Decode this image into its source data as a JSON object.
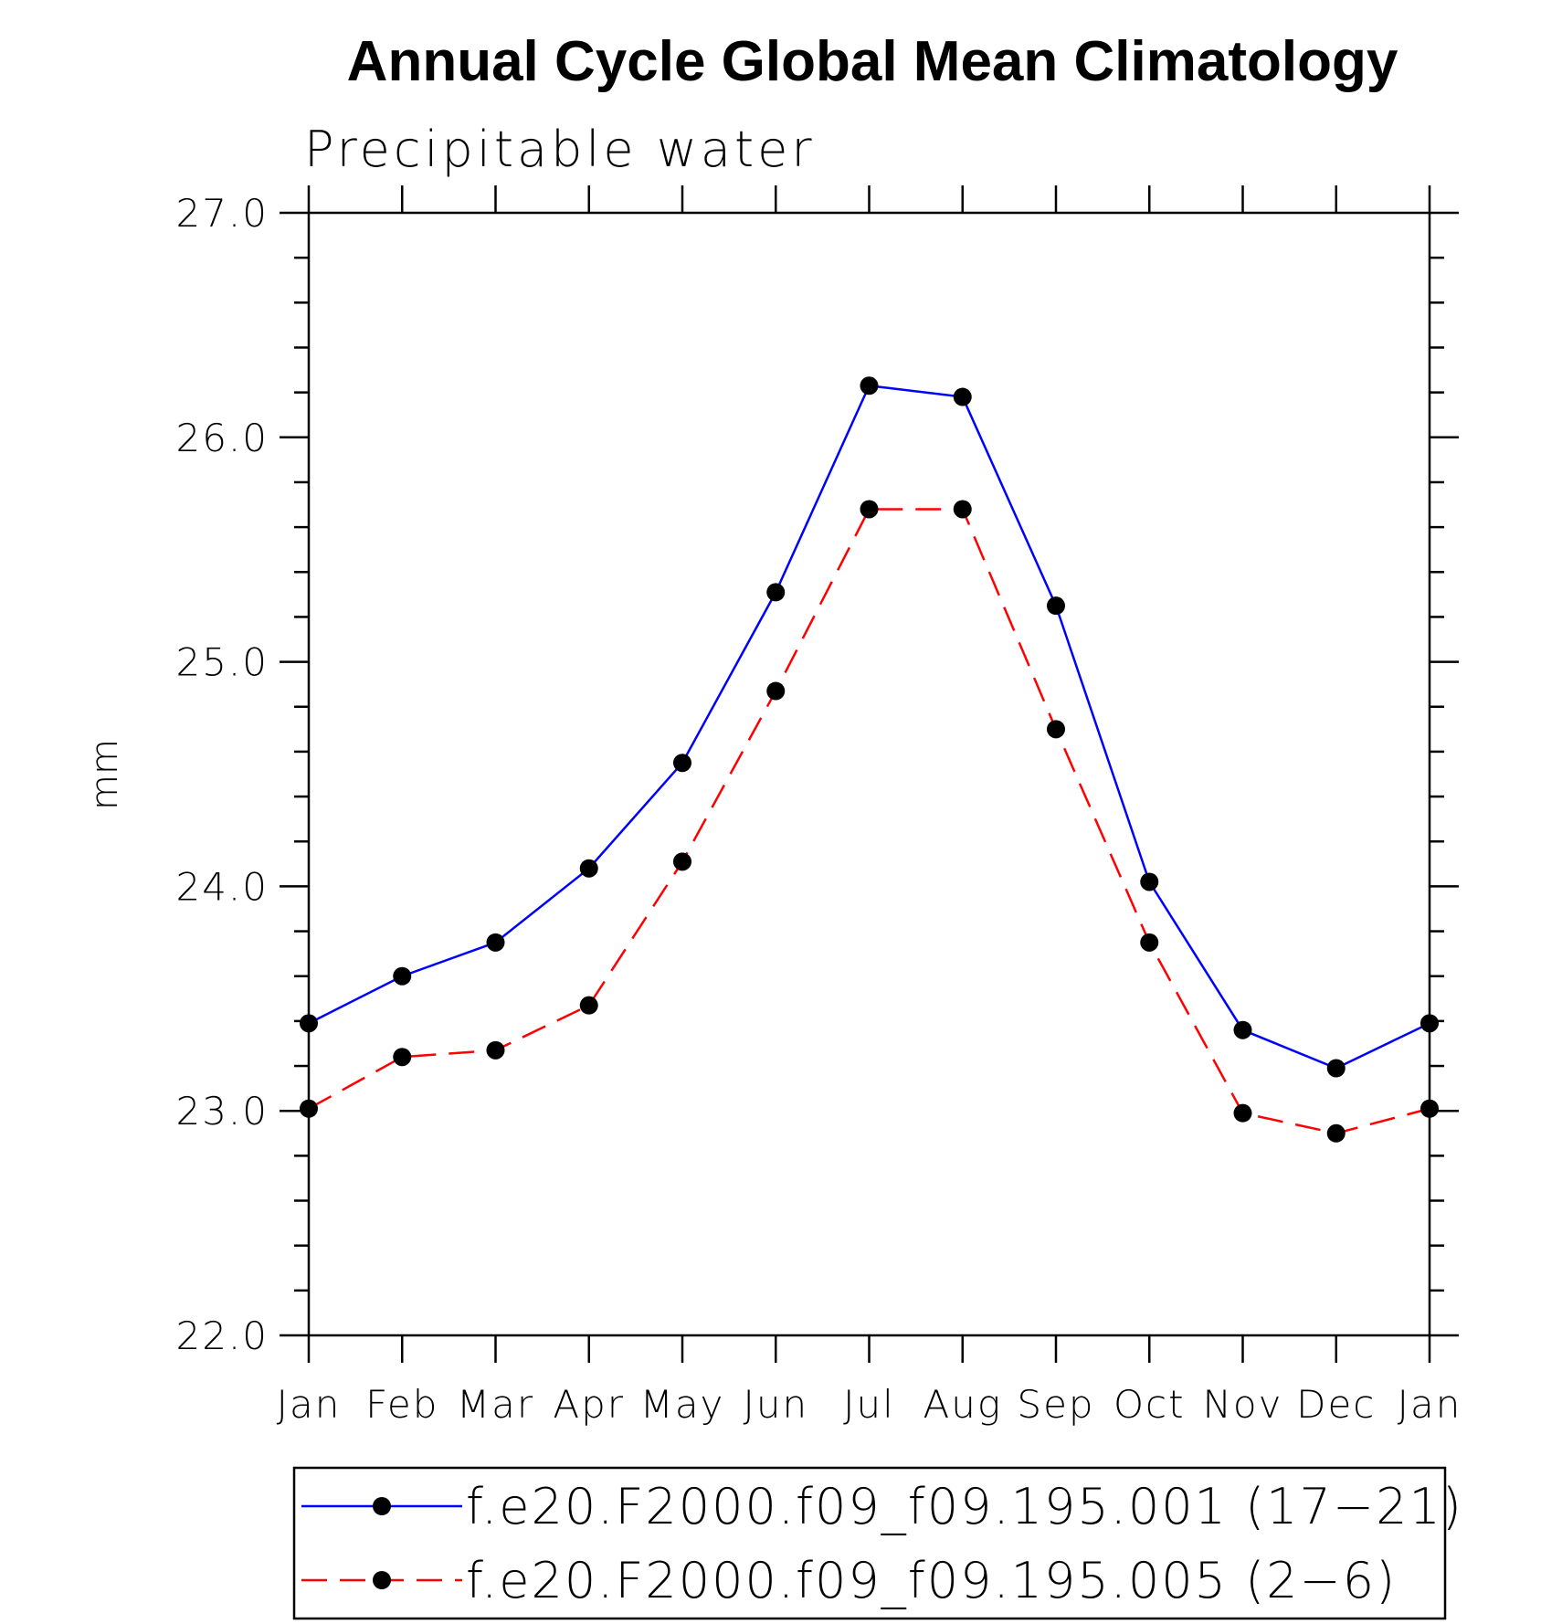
{
  "chart_data": {
    "type": "line",
    "title": "Annual Cycle Global Mean Climatology",
    "subtitle": "Precipitable water",
    "ylabel": "mm",
    "xlabel": "",
    "categories": [
      "Jan",
      "Feb",
      "Mar",
      "Apr",
      "May",
      "Jun",
      "Jul",
      "Aug",
      "Sep",
      "Oct",
      "Nov",
      "Dec",
      "Jan"
    ],
    "ylim": [
      22.0,
      27.0
    ],
    "yticks": [
      "22.0",
      "23.0",
      "24.0",
      "25.0",
      "26.0",
      "27.0"
    ],
    "grid": false,
    "legend_position": "bottom",
    "series": [
      {
        "name": "f.e20.F2000.f09_f09.195.001 (17−21)",
        "color": "#0000ff",
        "line_style": "solid",
        "marker": "circle",
        "values": [
          23.39,
          23.6,
          23.75,
          24.08,
          24.55,
          25.31,
          26.23,
          26.18,
          25.25,
          24.02,
          23.36,
          23.19,
          23.39
        ]
      },
      {
        "name": "f.e20.F2000.f09_f09.195.005 (2−6)",
        "color": "#ff0000",
        "line_style": "dashed",
        "marker": "circle",
        "values": [
          23.01,
          23.24,
          23.27,
          23.47,
          24.11,
          24.87,
          25.68,
          25.68,
          24.7,
          23.75,
          22.99,
          22.9,
          23.01
        ]
      }
    ]
  }
}
